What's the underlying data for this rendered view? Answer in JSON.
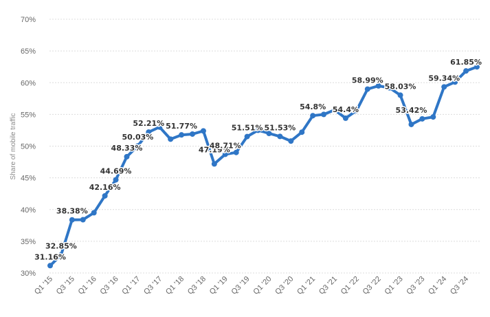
{
  "colors": {
    "series": "#2f76c6",
    "grid": "#dcdcdc",
    "axis_text": "#666666",
    "label_text": "#333333"
  },
  "chart_data": {
    "type": "line",
    "xlabel": "",
    "ylabel": "Share of mobile traffic",
    "ylim": [
      30,
      70
    ],
    "yticks": [
      "30%",
      "35%",
      "40%",
      "45%",
      "50%",
      "55%",
      "60%",
      "65%",
      "70%"
    ],
    "grid": "horizontal dashed",
    "x": [
      "Q1 '15",
      "Q2 '15",
      "Q3 '15",
      "Q4 '15",
      "Q1 '16",
      "Q2 '16",
      "Q3 '16",
      "Q4 '16",
      "Q1 '17",
      "Q2 '17",
      "Q3 '17",
      "Q4 '17",
      "Q1 '18",
      "Q2 '18",
      "Q3 '18",
      "Q4 '18",
      "Q1 '19",
      "Q2 '19",
      "Q3 '19",
      "Q4 '19",
      "Q1 '20",
      "Q2 '20",
      "Q3 '20",
      "Q4 '20",
      "Q1 '21",
      "Q2 '21",
      "Q3 '21",
      "Q4 '21",
      "Q1 '22",
      "Q2 '22",
      "Q3 '22",
      "Q4 '22",
      "Q1 '23",
      "Q2 '23",
      "Q3 '23",
      "Q4 '23",
      "Q1 '24",
      "Q2 '24",
      "Q3 '24",
      "Q4 '24"
    ],
    "xticks_shown": [
      "Q1 '15",
      "Q3 '15",
      "Q1 '16",
      "Q3 '16",
      "Q1 '17",
      "Q3 '17",
      "Q1 '18",
      "Q3 '18",
      "Q1 '19",
      "Q3 '19",
      "Q1 '20",
      "Q3 '20",
      "Q1 '21",
      "Q3 '21",
      "Q1 '22",
      "Q3 '22",
      "Q1 '23",
      "Q3 '23",
      "Q1 '24",
      "Q3 '24"
    ],
    "series": [
      {
        "values": [
          31.16,
          32.85,
          38.38,
          38.4,
          39.5,
          42.16,
          44.69,
          48.33,
          50.03,
          52.21,
          53.0,
          51.1,
          51.77,
          51.9,
          52.4,
          47.19,
          48.71,
          49.0,
          51.51,
          52.5,
          52.0,
          51.53,
          50.8,
          52.2,
          54.8,
          55.0,
          55.7,
          54.4,
          55.6,
          58.99,
          59.5,
          59.2,
          58.03,
          53.42,
          54.3,
          54.6,
          59.34,
          60.1,
          61.85,
          62.5
        ],
        "labels": {
          "0": "31.16%",
          "1": "32.85%",
          "2": "38.38%",
          "5": "42.16%",
          "6": "44.69%",
          "7": "48.33%",
          "8": "50.03%",
          "9": "52.21%",
          "12": "51.77%",
          "15": "47.19%",
          "16": "48.71%",
          "18": "51.51%",
          "21": "51.53%",
          "24": "54.8%",
          "27": "54.4%",
          "29": "58.99%",
          "32": "58.03%",
          "33": "53.42%",
          "36": "59.34%",
          "38": "61.85%"
        }
      }
    ]
  }
}
